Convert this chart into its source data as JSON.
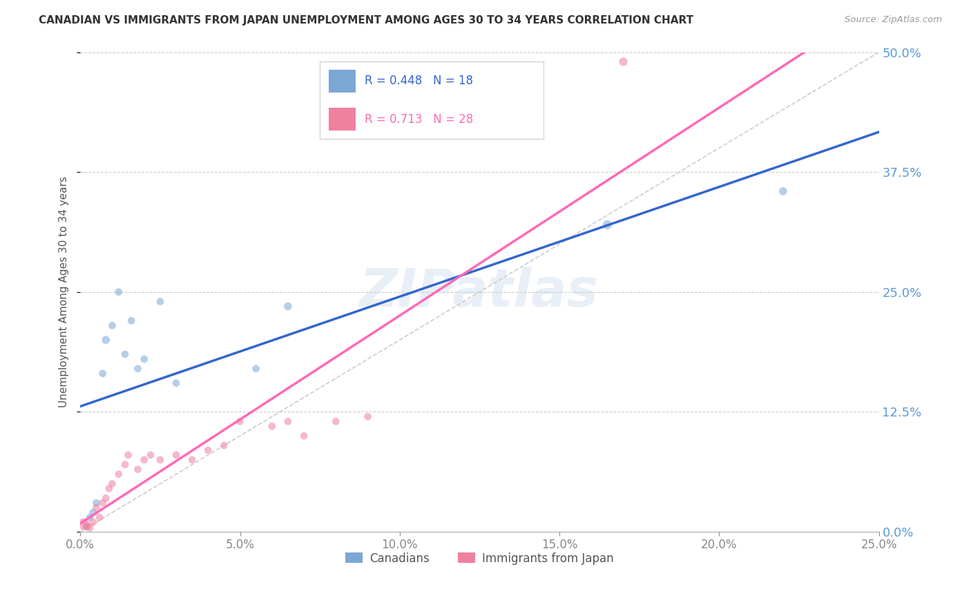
{
  "title": "CANADIAN VS IMMIGRANTS FROM JAPAN UNEMPLOYMENT AMONG AGES 30 TO 34 YEARS CORRELATION CHART",
  "source": "Source: ZipAtlas.com",
  "ylabel": "Unemployment Among Ages 30 to 34 years",
  "legend_label_canadians": "Canadians",
  "legend_label_immigrants": "Immigrants from Japan",
  "watermark": "ZIPatlas",
  "r_canadians": 0.448,
  "n_canadians": 18,
  "r_immigrants": 0.713,
  "n_immigrants": 28,
  "xmin": 0.0,
  "xmax": 0.25,
  "ymin": 0.0,
  "ymax": 0.5,
  "yticks": [
    0.0,
    0.125,
    0.25,
    0.375,
    0.5
  ],
  "xticks": [
    0.0,
    0.05,
    0.1,
    0.15,
    0.2,
    0.25
  ],
  "color_canadians": "#7BA7D4",
  "color_immigrants": "#F080A0",
  "color_trend_canadians": "#3366CC",
  "color_trend_immigrants": "#FF69B4",
  "color_diagonal": "#CCCCCC",
  "canadians_x": [
    0.002,
    0.003,
    0.004,
    0.005,
    0.007,
    0.008,
    0.01,
    0.012,
    0.014,
    0.016,
    0.018,
    0.02,
    0.025,
    0.03,
    0.055,
    0.065,
    0.165,
    0.22
  ],
  "canadians_y": [
    0.005,
    0.015,
    0.02,
    0.03,
    0.165,
    0.2,
    0.215,
    0.25,
    0.185,
    0.22,
    0.17,
    0.18,
    0.24,
    0.155,
    0.17,
    0.235,
    0.32,
    0.355
  ],
  "canadians_size": [
    60,
    60,
    60,
    60,
    60,
    70,
    60,
    60,
    60,
    60,
    60,
    60,
    60,
    60,
    60,
    70,
    90,
    70
  ],
  "immigrants_x": [
    0.001,
    0.002,
    0.003,
    0.004,
    0.005,
    0.006,
    0.007,
    0.008,
    0.009,
    0.01,
    0.012,
    0.014,
    0.015,
    0.018,
    0.02,
    0.022,
    0.025,
    0.03,
    0.035,
    0.04,
    0.045,
    0.05,
    0.06,
    0.065,
    0.07,
    0.08,
    0.09,
    0.17
  ],
  "immigrants_y": [
    0.008,
    0.006,
    0.004,
    0.01,
    0.025,
    0.015,
    0.03,
    0.035,
    0.045,
    0.05,
    0.06,
    0.07,
    0.08,
    0.065,
    0.075,
    0.08,
    0.075,
    0.08,
    0.075,
    0.085,
    0.09,
    0.115,
    0.11,
    0.115,
    0.1,
    0.115,
    0.12,
    0.49
  ],
  "immigrants_size": [
    150,
    80,
    60,
    60,
    60,
    60,
    60,
    60,
    60,
    60,
    60,
    60,
    60,
    60,
    60,
    60,
    60,
    60,
    60,
    60,
    60,
    60,
    60,
    60,
    60,
    60,
    60,
    80
  ]
}
